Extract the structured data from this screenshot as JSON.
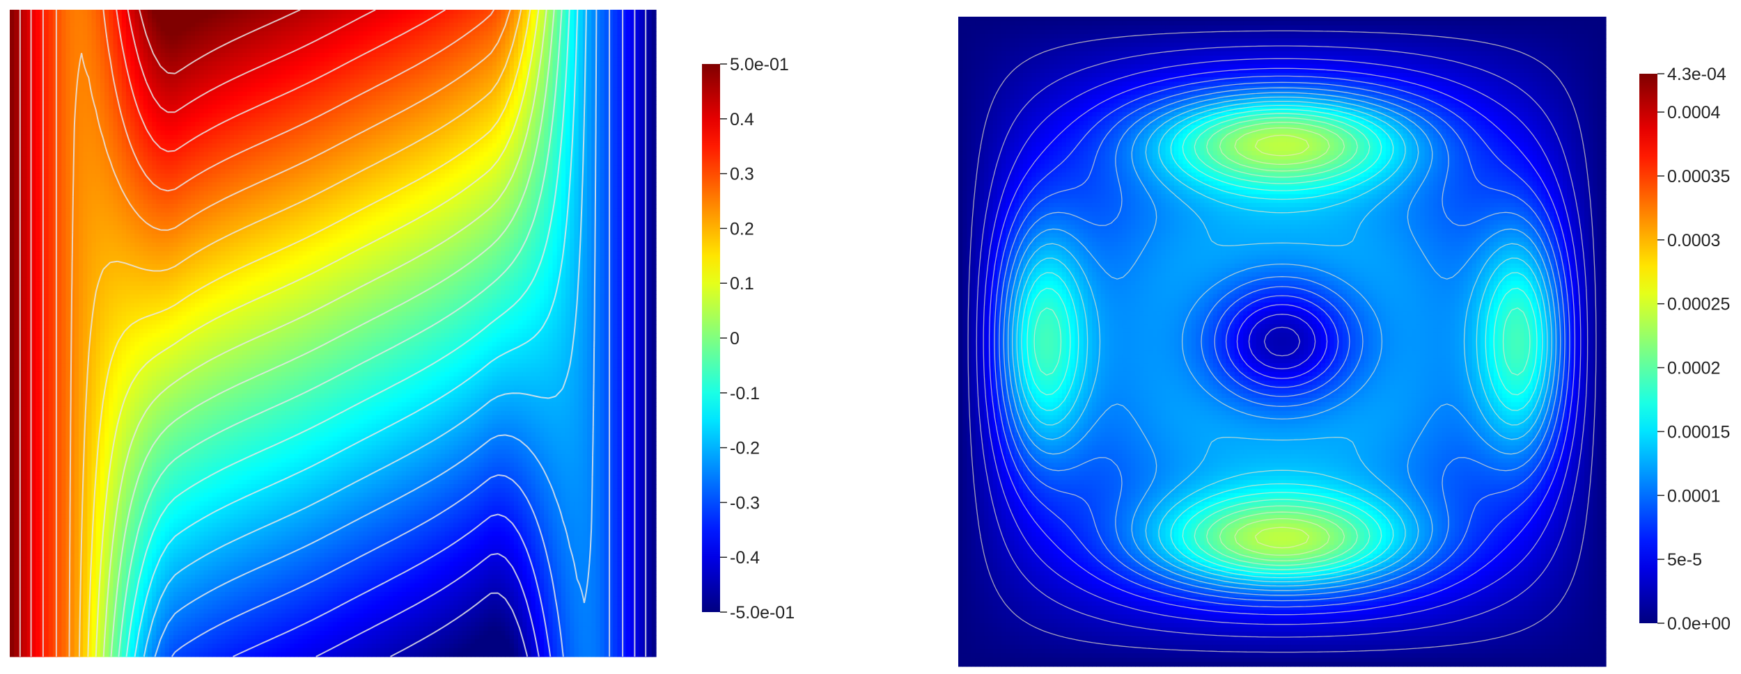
{
  "chart_data": [
    {
      "type": "heatmap",
      "colormap": "jet",
      "contours": true,
      "contour_color": "#e6e6e6",
      "colorbar": {
        "position": "right",
        "range": [
          -0.5,
          0.5
        ],
        "ticks": [
          {
            "value": 0.5,
            "label": "5.0e-01"
          },
          {
            "value": 0.4,
            "label": "0.4"
          },
          {
            "value": 0.3,
            "label": "0.3"
          },
          {
            "value": 0.2,
            "label": "0.2"
          },
          {
            "value": 0.1,
            "label": "0.1"
          },
          {
            "value": 0.0,
            "label": "0"
          },
          {
            "value": -0.1,
            "label": "-0.1"
          },
          {
            "value": -0.2,
            "label": "-0.2"
          },
          {
            "value": -0.3,
            "label": "-0.3"
          },
          {
            "value": -0.4,
            "label": "-0.4"
          },
          {
            "value": -0.5,
            "label": "-5.0e-01"
          }
        ]
      }
    },
    {
      "type": "heatmap",
      "colormap": "jet",
      "contours": true,
      "contour_color": "#ece6c8",
      "colorbar": {
        "position": "right",
        "range": [
          0.0,
          0.00043
        ],
        "ticks": [
          {
            "value": 0.00043,
            "label": "4.3e-04"
          },
          {
            "value": 0.0004,
            "label": "0.0004"
          },
          {
            "value": 0.00035,
            "label": "0.00035"
          },
          {
            "value": 0.0003,
            "label": "0.0003"
          },
          {
            "value": 0.00025,
            "label": "0.00025"
          },
          {
            "value": 0.0002,
            "label": "0.0002"
          },
          {
            "value": 0.00015,
            "label": "0.00015"
          },
          {
            "value": 0.0001,
            "label": "0.0001"
          },
          {
            "value": 5e-05,
            "label": "5e-5"
          },
          {
            "value": 0.0,
            "label": "0.0e+00"
          }
        ]
      }
    }
  ]
}
